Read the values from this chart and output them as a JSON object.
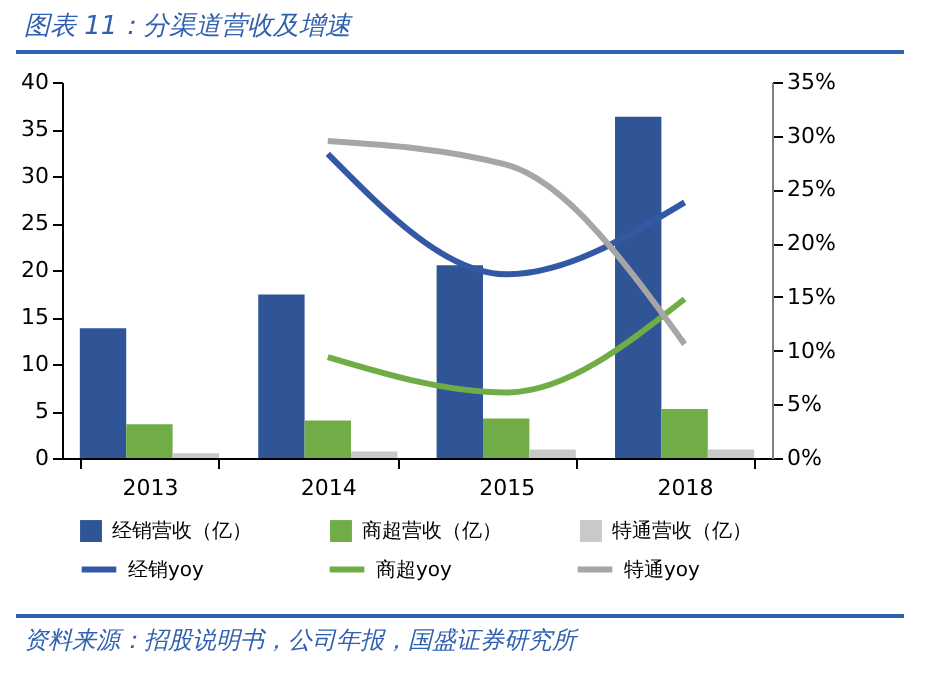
{
  "chart_data": {
    "type": "bar",
    "title": "图表 11：分渠道营收及增速",
    "categories": [
      "2013",
      "2014",
      "2015",
      "2018"
    ],
    "series": [
      {
        "name": "经销营收（亿）",
        "color": "#2f5597",
        "values": [
          13.8,
          17.4,
          20.5,
          36.3
        ]
      },
      {
        "name": "商超营收（亿）",
        "color": "#70ad47",
        "values": [
          3.6,
          4.0,
          4.2,
          5.2
        ]
      },
      {
        "name": "特通营收（亿）",
        "color": "#c9c9c9",
        "values": [
          0.5,
          0.7,
          0.9,
          0.9
        ]
      },
      {
        "name": "经销yoy",
        "type": "line",
        "axis": "y2",
        "color": "#3358a4",
        "values": [
          null,
          28.3,
          17.1,
          23.8
        ]
      },
      {
        "name": "商超yoy",
        "type": "line",
        "axis": "y2",
        "color": "#70ad47",
        "values": [
          null,
          9.4,
          6.1,
          14.8
        ]
      },
      {
        "name": "特通yoy",
        "type": "line",
        "axis": "y2",
        "color": "#a6a6a6",
        "values": [
          null,
          29.5,
          27.3,
          10.6
        ]
      }
    ],
    "ylim": [
      0,
      40
    ],
    "yticks": [
      0,
      5,
      10,
      15,
      20,
      25,
      30,
      35,
      40
    ],
    "y2lim": [
      0,
      35
    ],
    "y2ticks": [
      {
        "value": 0,
        "label": "0%"
      },
      {
        "value": 5,
        "label": "5%"
      },
      {
        "value": 10,
        "label": "10%"
      },
      {
        "value": 15,
        "label": "15%"
      },
      {
        "value": 20,
        "label": "20%"
      },
      {
        "value": 25,
        "label": "25%"
      },
      {
        "value": 30,
        "label": "30%"
      },
      {
        "value": 35,
        "label": "35%"
      }
    ],
    "legend": "bottom",
    "annotations": [
      "资料来源：招股说明书，公司年报，国盛证券研究所"
    ]
  }
}
